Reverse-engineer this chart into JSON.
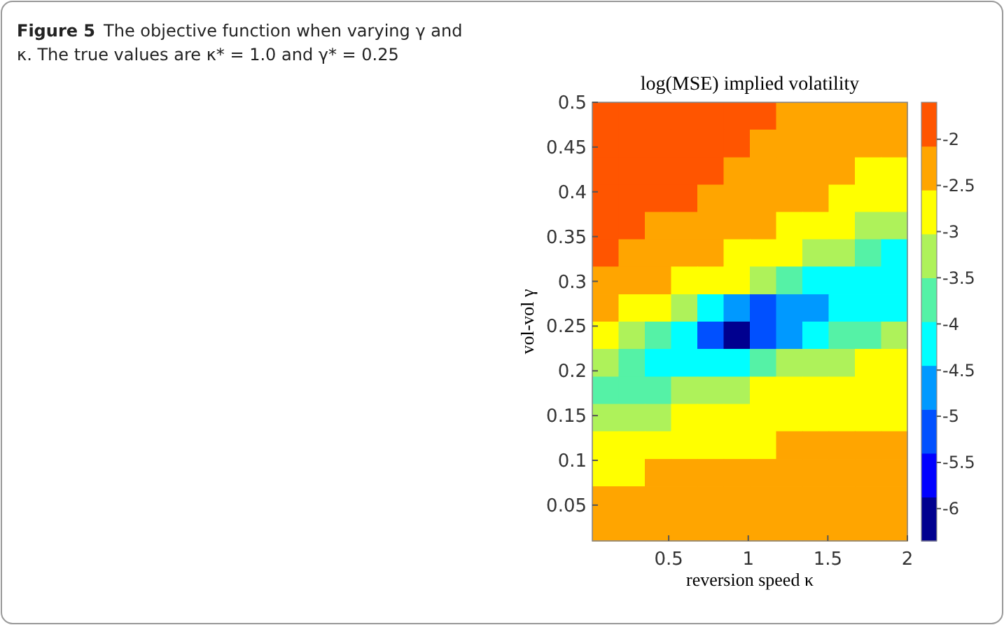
{
  "chart_data": {
    "type": "heatmap",
    "title": "log(MSE) implied volatility",
    "xlabel": "reversion speed κ",
    "ylabel": "vol-vol γ",
    "clabel": null,
    "annotations": [
      "Figure 5",
      "The objective function when varying γ and κ. The true values are κ* = 1.0 and γ* = 0.25"
    ],
    "x": [
      0.1,
      0.27,
      0.43,
      0.6,
      0.76,
      0.93,
      1.09,
      1.26,
      1.42,
      1.59,
      1.75,
      1.92
    ],
    "y": [
      0.485,
      0.454,
      0.423,
      0.393,
      0.362,
      0.332,
      0.301,
      0.27,
      0.24,
      0.209,
      0.178,
      0.148,
      0.117,
      0.086,
      0.056,
      0.025
    ],
    "xlim": [
      0.02,
      2
    ],
    "xticks": [
      0.5,
      1,
      1.5,
      2
    ],
    "ylim": [
      0.01,
      0.5
    ],
    "yticks": [
      0.05,
      0.1,
      0.15,
      0.2,
      0.25,
      0.3,
      0.35,
      0.4,
      0.45,
      0.5
    ],
    "clim": [
      -6.35,
      -1.6
    ],
    "cticks": [
      -6,
      -5.5,
      -5,
      -4.5,
      -4,
      -3.5,
      -3,
      -2.5,
      -2
    ],
    "cells": [
      [
        -1.85,
        -1.85,
        -1.85,
        -1.85,
        -1.85,
        -1.85,
        -1.85,
        -2.3,
        -2.3,
        -2.3,
        -2.3,
        -2.3
      ],
      [
        -1.85,
        -1.85,
        -1.85,
        -1.85,
        -1.85,
        -1.85,
        -2.3,
        -2.3,
        -2.3,
        -2.3,
        -2.3,
        -2.3
      ],
      [
        -1.85,
        -1.85,
        -1.85,
        -1.85,
        -1.85,
        -2.3,
        -2.3,
        -2.3,
        -2.3,
        -2.3,
        -2.8,
        -2.8
      ],
      [
        -1.85,
        -1.85,
        -1.85,
        -1.85,
        -2.3,
        -2.3,
        -2.3,
        -2.3,
        -2.3,
        -2.8,
        -2.8,
        -2.8
      ],
      [
        -1.85,
        -1.85,
        -2.3,
        -2.3,
        -2.3,
        -2.3,
        -2.3,
        -2.8,
        -2.8,
        -2.8,
        -3.3,
        -3.3
      ],
      [
        -1.85,
        -2.3,
        -2.3,
        -2.3,
        -2.3,
        -2.8,
        -2.8,
        -2.8,
        -3.3,
        -3.3,
        -3.8,
        -4.2
      ],
      [
        -2.3,
        -2.3,
        -2.3,
        -2.8,
        -2.8,
        -2.8,
        -3.3,
        -3.8,
        -4.2,
        -4.2,
        -4.2,
        -4.2
      ],
      [
        -2.3,
        -2.8,
        -2.8,
        -3.3,
        -4.2,
        -4.7,
        -5.15,
        -4.7,
        -4.7,
        -4.2,
        -4.2,
        -4.2
      ],
      [
        -2.8,
        -3.3,
        -3.8,
        -4.2,
        -5.15,
        -6.1,
        -5.15,
        -4.7,
        -4.2,
        -3.8,
        -3.8,
        -3.3
      ],
      [
        -3.3,
        -3.8,
        -4.2,
        -4.2,
        -4.2,
        -4.2,
        -3.8,
        -3.3,
        -3.3,
        -3.3,
        -2.8,
        -2.8
      ],
      [
        -3.8,
        -3.8,
        -3.8,
        -3.3,
        -3.3,
        -3.3,
        -2.8,
        -2.8,
        -2.8,
        -2.8,
        -2.8,
        -2.8
      ],
      [
        -3.3,
        -3.3,
        -3.3,
        -2.8,
        -2.8,
        -2.8,
        -2.8,
        -2.8,
        -2.8,
        -2.8,
        -2.8,
        -2.8
      ],
      [
        -2.8,
        -2.8,
        -2.8,
        -2.8,
        -2.8,
        -2.8,
        -2.8,
        -2.3,
        -2.3,
        -2.3,
        -2.3,
        -2.3
      ],
      [
        -2.8,
        -2.8,
        -2.3,
        -2.3,
        -2.3,
        -2.3,
        -2.3,
        -2.3,
        -2.3,
        -2.3,
        -2.3,
        -2.3
      ],
      [
        -2.3,
        -2.3,
        -2.3,
        -2.3,
        -2.3,
        -2.3,
        -2.3,
        -2.3,
        -2.3,
        -2.3,
        -2.3,
        -2.3
      ],
      [
        -2.3,
        -2.3,
        -2.3,
        -2.3,
        -2.3,
        -2.3,
        -2.3,
        -2.3,
        -2.3,
        -2.3,
        -2.3,
        -2.3
      ]
    ]
  }
}
